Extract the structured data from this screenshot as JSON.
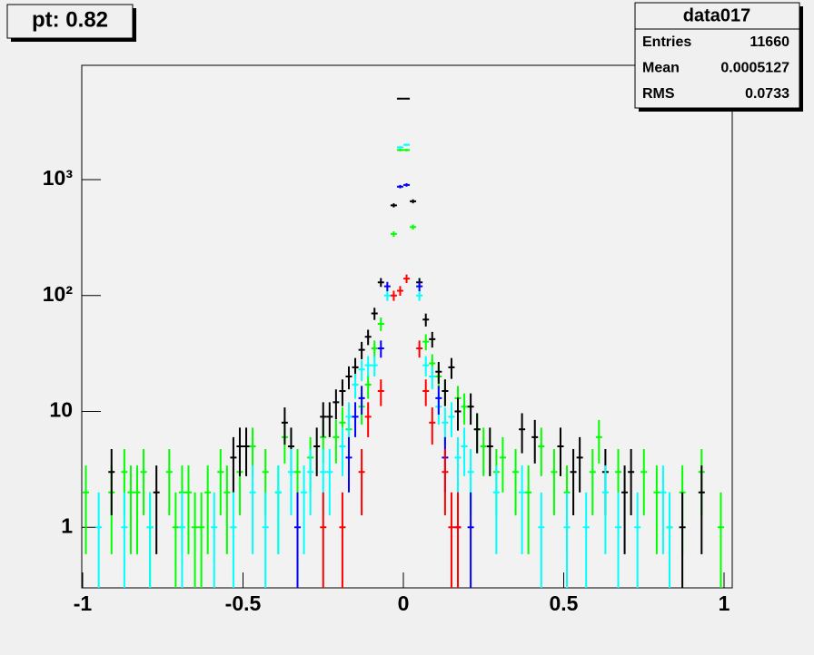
{
  "chart_data": {
    "type": "scatter",
    "title": "pt: 0.82",
    "log_y": true,
    "error_bars": true,
    "xlim": [
      -1,
      1
    ],
    "xticks": [
      -1,
      -0.5,
      0,
      0.5,
      1
    ],
    "ylim": [
      0.3,
      9700
    ],
    "yticks": [
      1,
      10,
      {
        "value": 100,
        "label": "10²"
      },
      {
        "value": 1000,
        "label": "10³"
      }
    ],
    "stats": {
      "title": "data017",
      "rows": [
        {
          "label": "Entries",
          "value": 11660
        },
        {
          "label": "Mean",
          "value": 0.0005127
        },
        {
          "label": "RMS",
          "value": 0.0733
        }
      ]
    },
    "series": [
      {
        "color": "#00ff00",
        "x": [
          -0.99,
          -0.91,
          -0.87,
          -0.85,
          -0.83,
          -0.81,
          -0.79,
          -0.73,
          -0.71,
          -0.69,
          -0.67,
          -0.65,
          -0.63,
          -0.61,
          -0.57,
          -0.55,
          -0.51,
          -0.47,
          -0.43,
          -0.39,
          -0.37,
          -0.33,
          -0.29,
          -0.25,
          -0.21,
          -0.19,
          -0.17,
          -0.13,
          -0.11,
          -0.09,
          -0.07,
          -0.03,
          -0.01,
          0.01,
          0.03,
          0.07,
          0.09,
          0.11,
          0.13,
          0.17,
          0.19,
          0.23,
          0.25,
          0.29,
          0.31,
          0.35,
          0.39,
          0.43,
          0.47,
          0.51,
          0.59,
          0.61,
          0.67,
          0.75,
          0.79,
          0.83,
          0.87,
          0.93,
          0.99
        ],
        "values": [
          2,
          2,
          3,
          2,
          2,
          3,
          1,
          3,
          1,
          2,
          2,
          1,
          1,
          2,
          3,
          2,
          3,
          5,
          3,
          2,
          6,
          3,
          4,
          6,
          6,
          8,
          7,
          11,
          17,
          35,
          57,
          340,
          1800,
          1800,
          390,
          40,
          26,
          20,
          15,
          13,
          11,
          7,
          5,
          3,
          4,
          3,
          2,
          5,
          3,
          2,
          3,
          6,
          3,
          3,
          2,
          1,
          2,
          3,
          1
        ]
      },
      {
        "color": "#000000",
        "x": [
          -0.91,
          -0.77,
          -0.53,
          -0.51,
          -0.49,
          -0.37,
          -0.35,
          -0.27,
          -0.25,
          -0.23,
          -0.21,
          -0.19,
          -0.17,
          -0.15,
          -0.13,
          -0.11,
          -0.09,
          -0.07,
          -0.03,
          -0.01,
          0.01,
          0.03,
          0.05,
          0.07,
          0.09,
          0.11,
          0.13,
          0.15,
          0.17,
          0.21,
          0.23,
          0.27,
          0.37,
          0.41,
          0.49,
          0.53,
          0.55,
          0.63,
          0.69,
          0.71,
          0.87,
          0.93
        ],
        "values": [
          3,
          2,
          4,
          5,
          5,
          8,
          5,
          5,
          9,
          9,
          12,
          15,
          20,
          24,
          34,
          44,
          70,
          130,
          600,
          5000,
          5000,
          650,
          130,
          62,
          42,
          22,
          15,
          24,
          10,
          11,
          7,
          5,
          7,
          6,
          5,
          3,
          4,
          3,
          2,
          3,
          1,
          2
        ]
      },
      {
        "color": "#00ffff",
        "x": [
          -0.95,
          -0.87,
          -0.79,
          -0.69,
          -0.59,
          -0.53,
          -0.47,
          -0.43,
          -0.39,
          -0.35,
          -0.31,
          -0.29,
          -0.25,
          -0.23,
          -0.19,
          -0.17,
          -0.15,
          -0.13,
          -0.11,
          -0.09,
          -0.05,
          -0.01,
          0.01,
          0.05,
          0.07,
          0.09,
          0.11,
          0.13,
          0.15,
          0.17,
          0.19,
          0.21,
          0.29,
          0.37,
          0.43,
          0.51,
          0.57,
          0.63,
          0.67,
          0.73,
          0.81,
          0.83
        ],
        "values": [
          1,
          1,
          1,
          1,
          1,
          1,
          2,
          1,
          2,
          3,
          2,
          3,
          3,
          3,
          5,
          9,
          17,
          23,
          25,
          25,
          100,
          1900,
          2000,
          100,
          25,
          20,
          11,
          8,
          9,
          4,
          5,
          3,
          2,
          2,
          1,
          1,
          1,
          2,
          1,
          1,
          2,
          1
        ]
      },
      {
        "color": "#0000ff",
        "x": [
          -0.33,
          -0.17,
          -0.15,
          -0.13,
          -0.07,
          -0.05,
          -0.01,
          0.01,
          0.05,
          0.11,
          0.13,
          0.17,
          0.21
        ],
        "values": [
          1,
          4,
          9,
          13,
          35,
          120,
          870,
          900,
          120,
          13,
          4,
          1,
          1
        ]
      },
      {
        "color": "#ff0000",
        "x": [
          -0.25,
          -0.19,
          -0.13,
          -0.11,
          -0.07,
          -0.03,
          -0.01,
          0.01,
          0.05,
          0.07,
          0.09,
          0.13,
          0.15,
          0.17
        ],
        "values": [
          1,
          1,
          3,
          9,
          15,
          100,
          110,
          140,
          35,
          15,
          8,
          3,
          1,
          1
        ]
      }
    ]
  }
}
